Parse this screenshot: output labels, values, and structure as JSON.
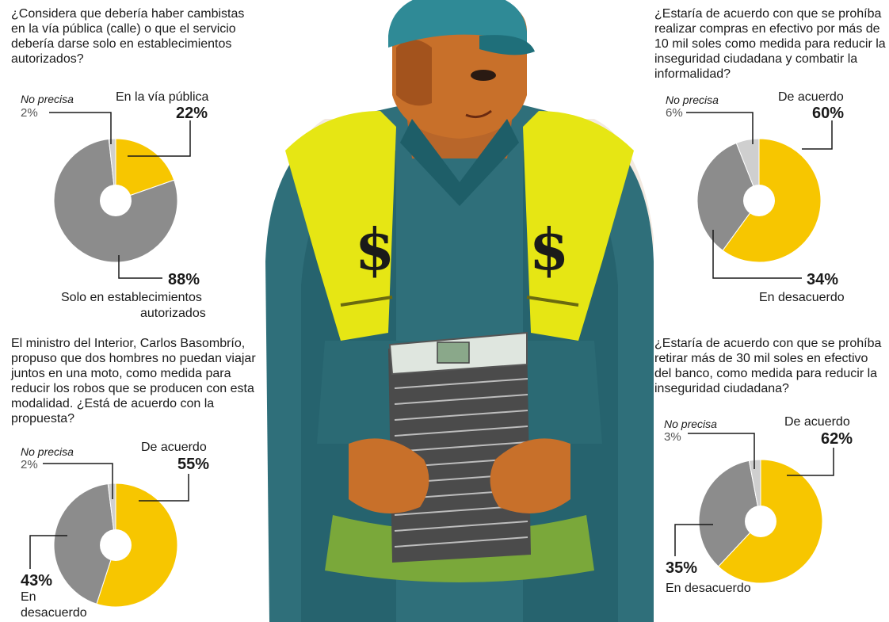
{
  "colors": {
    "yellow": "#f7c600",
    "gray": "#8c8c8c",
    "light_gray": "#cfcfcf",
    "hole": "#ffffff"
  },
  "chart_data": [
    {
      "type": "pie",
      "title": "¿Considera que debería haber cambistas en la vía pública (calle) o que el servicio debería darse solo en establecimientos autorizados?",
      "slices": [
        {
          "name": "En la vía pública",
          "value": 22,
          "value_label": "22%",
          "color": "#f7c600"
        },
        {
          "name": "Solo en establecimientos autorizados",
          "value": 88,
          "value_label": "88%",
          "color": "#8c8c8c"
        },
        {
          "name": "No precisa",
          "value": 2,
          "value_label": "2%",
          "color": "#cfcfcf"
        }
      ]
    },
    {
      "type": "pie",
      "title": "¿Estaría de acuerdo con que se prohíba realizar compras en efectivo por más de 10 mil soles como medida para reducir la inseguridad ciudadana y combatir la informalidad?",
      "slices": [
        {
          "name": "De acuerdo",
          "value": 60,
          "value_label": "60%",
          "color": "#f7c600"
        },
        {
          "name": "En desacuerdo",
          "value": 34,
          "value_label": "34%",
          "color": "#8c8c8c"
        },
        {
          "name": "No precisa",
          "value": 6,
          "value_label": "6%",
          "color": "#cfcfcf"
        }
      ]
    },
    {
      "type": "pie",
      "title": "El ministro del Interior, Carlos Basombrío, propuso que dos hombres no puedan viajar juntos en una moto, como medida para reducir los robos que se producen con esta modalidad. ¿Está de acuerdo con la propuesta?",
      "slices": [
        {
          "name": "De acuerdo",
          "value": 55,
          "value_label": "55%",
          "color": "#f7c600"
        },
        {
          "name": "En desacuerdo",
          "value": 43,
          "value_label": "43%",
          "color": "#8c8c8c"
        },
        {
          "name": "No precisa",
          "value": 2,
          "value_label": "2%",
          "color": "#cfcfcf"
        }
      ]
    },
    {
      "type": "pie",
      "title": "¿Estaría de acuerdo con que se prohíba retirar más de 30 mil soles en efectivo del banco, como medida para reducir la inseguridad ciudadana?",
      "slices": [
        {
          "name": "De acuerdo",
          "value": 62,
          "value_label": "62%",
          "color": "#f7c600"
        },
        {
          "name": "En desacuerdo",
          "value": 35,
          "value_label": "35%",
          "color": "#8c8c8c"
        },
        {
          "name": "No precisa",
          "value": 3,
          "value_label": "3%",
          "color": "#cfcfcf"
        }
      ]
    }
  ],
  "labels": {
    "c1": {
      "yes_name": "En la vía pública",
      "no_name_line1": "Solo en establecimientos",
      "no_name_line2": "autorizados"
    },
    "c3": {
      "no_name_line1": "En",
      "no_name_line2": "desacuerdo"
    }
  },
  "illustration": {
    "description_icon": "money-changer-illustration",
    "glyph": "$"
  }
}
